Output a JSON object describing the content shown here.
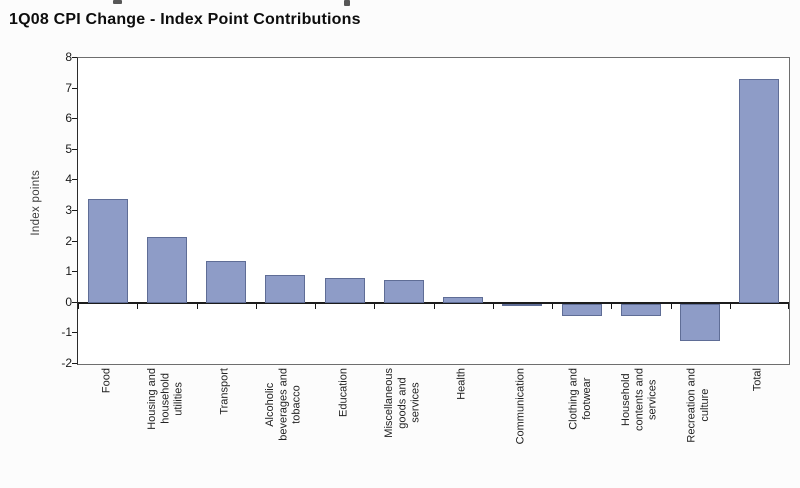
{
  "artifacts": {
    "description": "tiny fragments of cropped-off text along the very top edge of the image"
  },
  "chart_data": {
    "type": "bar",
    "title": "1Q08 CPI Change - Index Point Contributions",
    "xlabel": "",
    "ylabel": "Index points",
    "ylim": [
      -2,
      8
    ],
    "yticks": [
      8,
      7,
      6,
      5,
      4,
      3,
      2,
      1,
      0,
      -1,
      -2
    ],
    "grid": false,
    "legend_position": "none",
    "zero_baseline": true,
    "categories": [
      "Food",
      "Housing and household utilities",
      "Transport",
      "Alcoholic beverages and tobacco",
      "Education",
      "Miscellaneous goods and services",
      "Health",
      "Communication",
      "Clothing and footwear",
      "Household contents and services",
      "Recreation and culture",
      "Total"
    ],
    "category_label_lines": [
      [
        "Food"
      ],
      [
        "Housing and",
        "household",
        "utilities"
      ],
      [
        "Transport"
      ],
      [
        "Alcoholic",
        "beverages and",
        "tobacco"
      ],
      [
        "Education"
      ],
      [
        "Miscellaneous",
        "goods and",
        "services"
      ],
      [
        "Health"
      ],
      [
        "Communication"
      ],
      [
        "Clothing and",
        "footwear"
      ],
      [
        "Household",
        "contents and",
        "services"
      ],
      [
        "Recreation and",
        "culture"
      ],
      [
        "Total"
      ]
    ],
    "values": [
      3.4,
      2.15,
      1.35,
      0.9,
      0.8,
      0.75,
      0.2,
      -0.03,
      -0.4,
      -0.4,
      -1.2,
      7.3
    ],
    "colors": {
      "bar_fill": "#8e9cc7",
      "bar_border": "#5f6d96",
      "zero_line": "#1c1c1c",
      "axis": "#2b2b2b",
      "plot_border": "#6e6e6e",
      "text": "#1a1a1a",
      "background": "#fcfcfc"
    }
  }
}
